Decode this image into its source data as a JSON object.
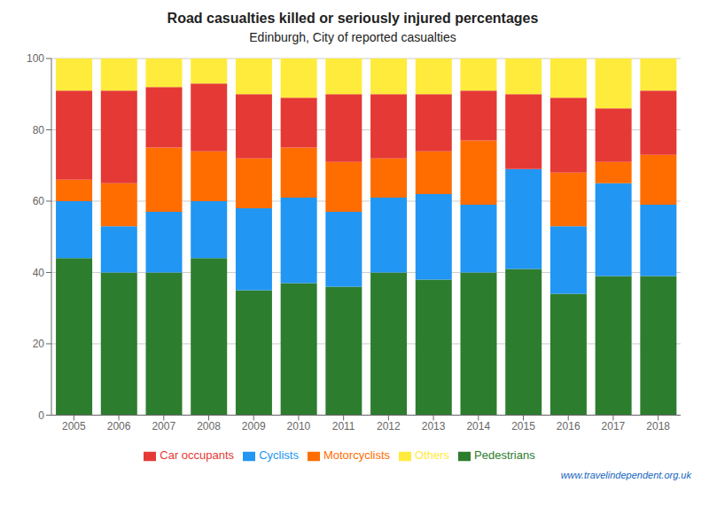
{
  "chart_data": {
    "type": "bar",
    "stacked": true,
    "title": "Road casualties killed or seriously injured percentages",
    "subtitle": "Edinburgh, City of reported casualties",
    "watermark": "www.travelindependent.org.uk",
    "categories": [
      2005,
      2006,
      2007,
      2008,
      2009,
      2010,
      2011,
      2012,
      2013,
      2014,
      2015,
      2016,
      2017,
      2018
    ],
    "series": [
      {
        "name": "Pedestrians",
        "color": "#2d7d2e",
        "values": [
          44,
          40,
          40,
          44,
          35,
          37,
          36,
          40,
          38,
          40,
          41,
          34,
          39,
          39
        ]
      },
      {
        "name": "Cyclists",
        "color": "#2196f3",
        "values": [
          16,
          13,
          17,
          16,
          23,
          24,
          21,
          21,
          24,
          19,
          28,
          19,
          26,
          20
        ]
      },
      {
        "name": "Motorcyclists",
        "color": "#ff6d00",
        "values": [
          6,
          12,
          18,
          14,
          14,
          14,
          14,
          11,
          12,
          18,
          0,
          15,
          6,
          14
        ]
      },
      {
        "name": "Car occupants",
        "color": "#e53935",
        "values": [
          25,
          26,
          17,
          19,
          18,
          14,
          19,
          18,
          16,
          14,
          21,
          21,
          15,
          18
        ]
      },
      {
        "name": "Others",
        "color": "#ffeb3b",
        "values": [
          9,
          9,
          8,
          7,
          10,
          11,
          10,
          10,
          10,
          9,
          10,
          11,
          14,
          9
        ]
      }
    ],
    "ylim": [
      0,
      100
    ],
    "yticks": [
      0,
      20,
      40,
      60,
      80,
      100
    ],
    "grid": "y",
    "legend": "bottom"
  }
}
